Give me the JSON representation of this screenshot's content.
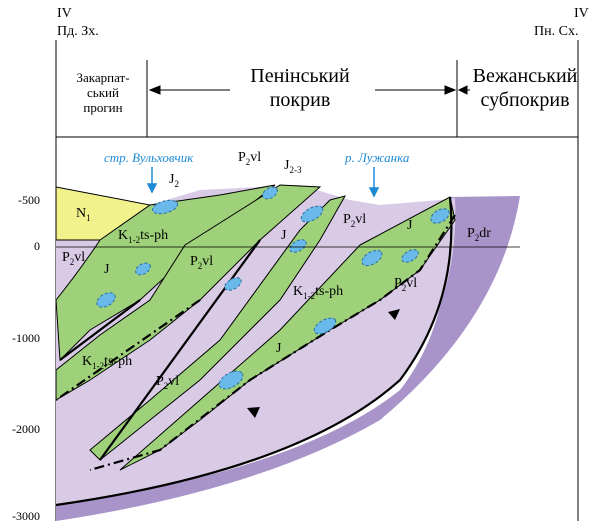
{
  "header": {
    "left_roman": "IV",
    "left_dir": "Пд. Зх.",
    "right_roman": "IV",
    "right_dir": "Пн. Сх."
  },
  "zones": {
    "left_line1": "Закарпат-",
    "left_line2": "ський",
    "left_line3": "прогин",
    "center_line1": "Пенінський",
    "center_line2": "покрив",
    "right_line1": "Вежанський",
    "right_line2": "субпокрив"
  },
  "rivers": {
    "left": "стр. Вульховчик",
    "right": "р. Лужанка"
  },
  "depth_ticks": [
    "-500",
    "0",
    "-1000",
    "-2000",
    "-3000"
  ],
  "units": {
    "n1": {
      "main": "N",
      "sub": "1"
    },
    "j2": {
      "main": "J",
      "sub": "2"
    },
    "p2vl_top": {
      "main": "P",
      "sub": "2",
      "tail": "vl"
    },
    "j23": {
      "main": "J",
      "sub": "2-3"
    },
    "p2vl_a": {
      "main": "P",
      "sub": "2",
      "tail": "vl"
    },
    "k_a": {
      "main": "K",
      "sub": "1-2",
      "tail": "ts-ph"
    },
    "p2vl_b": {
      "main": "P",
      "sub": "2",
      "tail": "vl"
    },
    "p2vl_c": {
      "main": "P",
      "sub": "2",
      "tail": "vl"
    },
    "j_a": "J",
    "j_b": "J",
    "j_c": "J",
    "p2dr": {
      "main": "P",
      "sub": "2",
      "tail": "dr"
    },
    "k_b": {
      "main": "K",
      "sub": "1-2",
      "tail": "ts-ph"
    },
    "p2vl_d": {
      "main": "P",
      "sub": "2",
      "tail": "vl"
    },
    "k_c": {
      "main": "K",
      "sub": "1-2",
      "tail": "ts-ph"
    },
    "j_d": "J",
    "p2vl_e": {
      "main": "P",
      "sub": "2",
      "tail": "vl"
    }
  },
  "colors": {
    "green": "#9ed17a",
    "lilac": "#d9cbe6",
    "purple": "#a994c9",
    "yellow": "#f2f28c",
    "lens": "#69b9ea",
    "river": "#1e8ad6"
  }
}
